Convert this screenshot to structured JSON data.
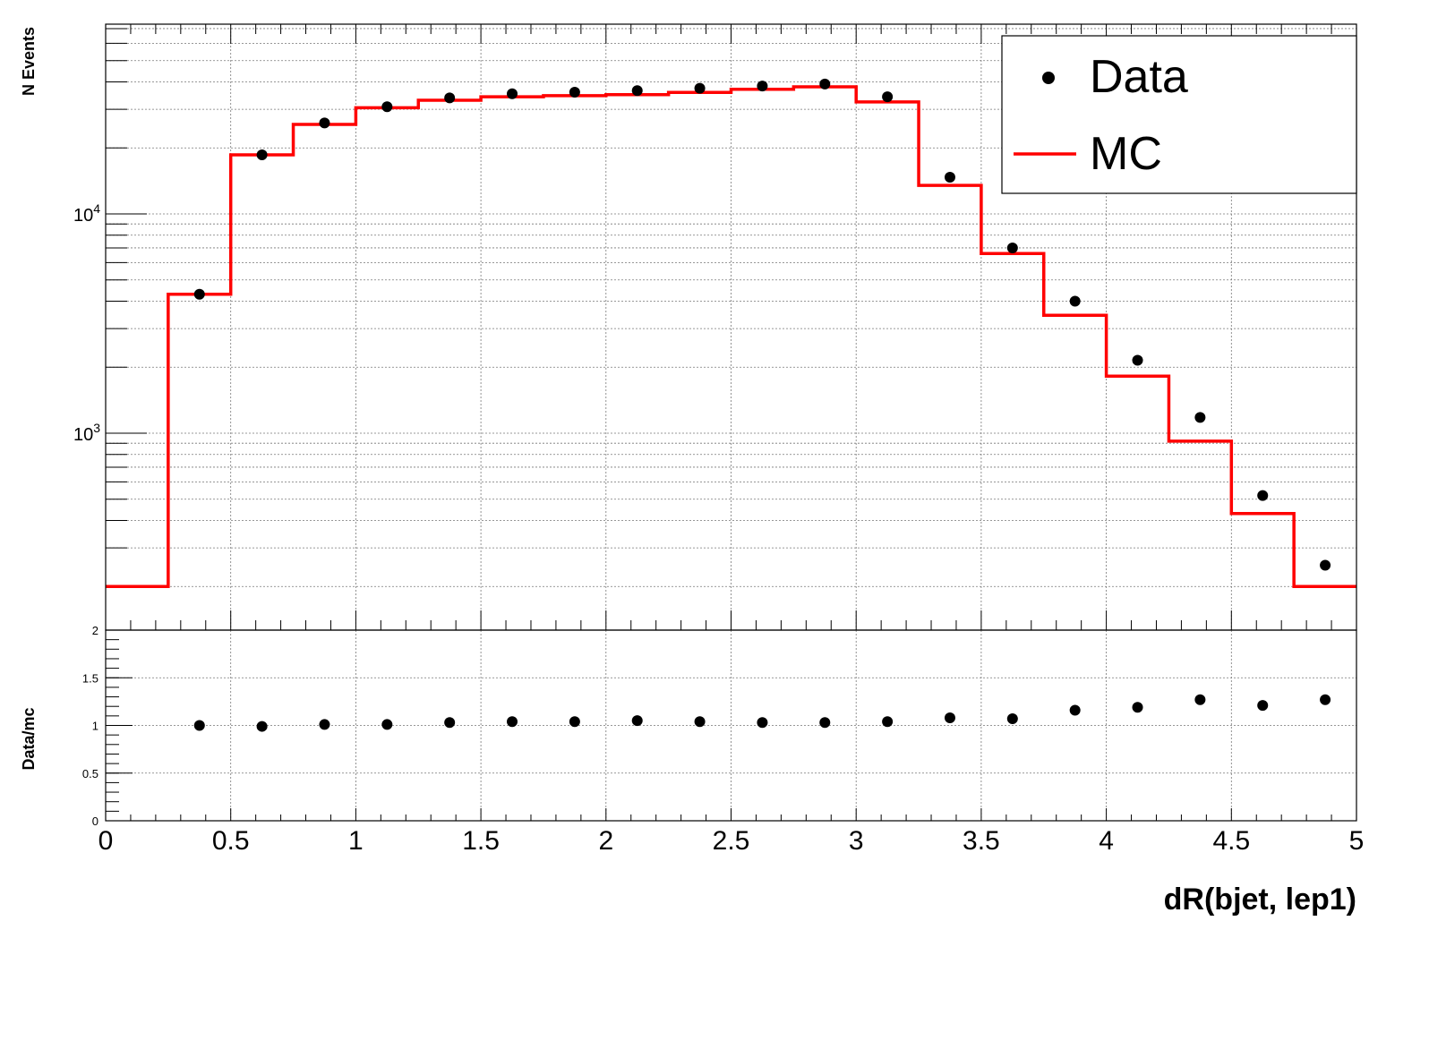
{
  "chart_data": [
    {
      "type": "line",
      "xlabel": "dR(bjet, lep1)",
      "ylabel": "N Events",
      "ylim": [
        200,
        80000
      ],
      "xlim": [
        0,
        5
      ],
      "yscale": "log",
      "grid": true,
      "legend": {
        "placement": "top-right",
        "entries": [
          "Data",
          "MC"
        ]
      },
      "y_tick_labels": [
        {
          "value": 10000,
          "base": "10",
          "exponent": "4"
        },
        {
          "value": 1000,
          "base": "10",
          "exponent": "3"
        }
      ],
      "series": [
        {
          "name": "Data",
          "style": "markers",
          "color": "#000000",
          "x": [
            0.375,
            0.625,
            0.875,
            1.125,
            1.375,
            1.625,
            1.875,
            2.125,
            2.375,
            2.625,
            2.875,
            3.125,
            3.375,
            3.625,
            3.875,
            4.125,
            4.375,
            4.625,
            4.875
          ],
          "values": [
            4300,
            18600,
            26000,
            30800,
            33800,
            35300,
            35900,
            36500,
            37400,
            38300,
            39100,
            34200,
            14700,
            7000,
            4000,
            2150,
            1180,
            520,
            250
          ]
        },
        {
          "name": "MC",
          "style": "step",
          "color": "#ff0000",
          "bin_edges": [
            0,
            0.25,
            0.5,
            0.75,
            1.0,
            1.25,
            1.5,
            1.75,
            2.0,
            2.25,
            2.5,
            2.75,
            3.0,
            3.25,
            3.5,
            3.75,
            4.0,
            4.25,
            4.5,
            4.75,
            5.0
          ],
          "values": [
            200,
            4300,
            18600,
            25600,
            30500,
            33000,
            34200,
            34600,
            35000,
            35800,
            37000,
            38000,
            32400,
            13500,
            6600,
            3450,
            1820,
            920,
            430,
            200
          ]
        }
      ]
    },
    {
      "type": "scatter",
      "xlabel": "dR(bjet, lep1)",
      "ylabel": "Data/mc",
      "ylim": [
        0,
        2
      ],
      "xlim": [
        0,
        5
      ],
      "grid": true,
      "x_tick_labels": [
        "0",
        "0.5",
        "1",
        "1.5",
        "2",
        "2.5",
        "3",
        "3.5",
        "4",
        "4.5",
        "5"
      ],
      "y_tick_labels": [
        "0",
        "0.5",
        "1",
        "1.5",
        "2"
      ],
      "series": [
        {
          "name": "Data/mc",
          "color": "#000000",
          "x": [
            0.375,
            0.625,
            0.875,
            1.125,
            1.375,
            1.625,
            1.875,
            2.125,
            2.375,
            2.625,
            2.875,
            3.125,
            3.375,
            3.625,
            3.875,
            4.125,
            4.375,
            4.625,
            4.875
          ],
          "values": [
            1.0,
            0.99,
            1.01,
            1.01,
            1.03,
            1.04,
            1.04,
            1.05,
            1.04,
            1.03,
            1.03,
            1.04,
            1.08,
            1.07,
            1.16,
            1.19,
            1.27,
            1.21,
            1.27
          ]
        }
      ]
    }
  ]
}
